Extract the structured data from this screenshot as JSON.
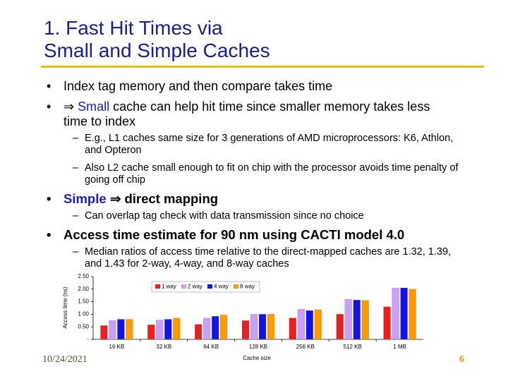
{
  "slide": {
    "title_lines": [
      "1. Fast Hit Times via",
      "Small and Simple Caches"
    ],
    "bullets": [
      {
        "parts": [
          "Index tag memory and then compare takes time"
        ]
      },
      {
        "parts": [
          "⇒",
          "Small",
          "cache can help hit time since smaller memory takes less time to index"
        ],
        "sub": [
          "E.g., L1 caches same size for 3 generations of AMD microprocessors: K6, Athlon, and Opteron",
          "Also L2 cache small enough to fit on chip with the processor avoids time penalty of going off chip"
        ]
      },
      {
        "parts": [
          "Simple",
          "⇒ direct mapping"
        ],
        "sub": [
          "Can overlap tag check with data transmission since no choice"
        ]
      },
      {
        "parts": [
          "Access time estimate for 90 nm using CACTI model 4.0"
        ],
        "sub": [
          "Median ratios of access time relative to the direct-mapped caches are 1.32, 1.39, and 1.43 for 2-way, 4-way, and 8-way caches"
        ]
      }
    ],
    "date": "10/24/2021",
    "page_number": 6
  },
  "chart_data": {
    "type": "bar",
    "xlabel": "Cache size",
    "ylabel": "Access time (ns)",
    "categories": [
      "16 KB",
      "32 KB",
      "64 KB",
      "128 KB",
      "256 KB",
      "512 KB",
      "1 MB"
    ],
    "series": [
      {
        "name": "1 way",
        "color": "#e8201f",
        "values": [
          0.55,
          0.58,
          0.6,
          0.75,
          0.85,
          1.0,
          1.3
        ]
      },
      {
        "name": "2 way",
        "color": "#c9a0f5",
        "values": [
          0.75,
          0.77,
          0.85,
          1.0,
          1.2,
          1.6,
          2.05
        ]
      },
      {
        "name": "4 way",
        "color": "#1414e0",
        "values": [
          0.8,
          0.8,
          0.92,
          1.0,
          1.15,
          1.57,
          2.05
        ]
      },
      {
        "name": "8 way",
        "color": "#ff9900",
        "values": [
          0.8,
          0.85,
          0.97,
          1.0,
          1.18,
          1.55,
          2.0
        ]
      }
    ],
    "ylim": [
      0,
      2.5
    ],
    "yticks": [
      {
        "value": 0,
        "label": "-"
      },
      {
        "value": 0.5,
        "label": "0.50"
      },
      {
        "value": 1,
        "label": "1.00"
      },
      {
        "value": 1.5,
        "label": "1.50"
      },
      {
        "value": 2,
        "label": "2.00"
      },
      {
        "value": 2.5,
        "label": "2.50"
      }
    ],
    "grid": false
  }
}
